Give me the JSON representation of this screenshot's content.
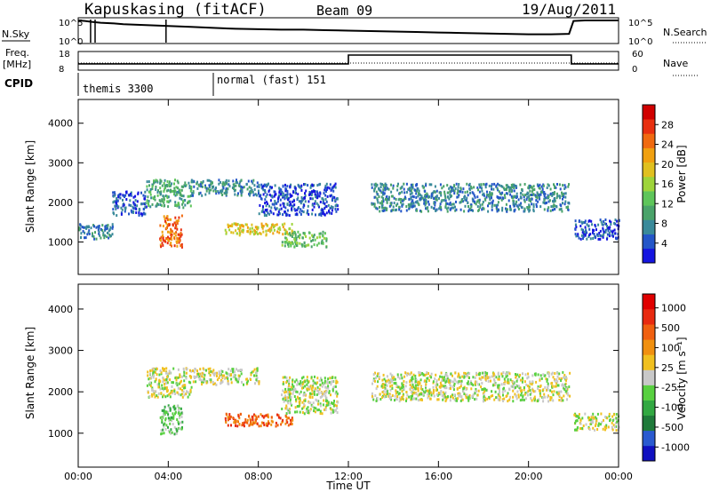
{
  "header": {
    "station": "Kapuskasing (fitACF)",
    "beam": "Beam 09",
    "date": "19/Aug/2011"
  },
  "noise_panel": {
    "left_label": "N.Sky",
    "right_label": "N.Search",
    "left_ticks": [
      "10^5",
      "10^0"
    ],
    "right_ticks": [
      "10^5",
      "10^0"
    ],
    "noise_sky_log": [
      [
        0.0,
        4.8
      ],
      [
        0.3,
        4.7
      ],
      [
        0.6,
        4.5
      ],
      [
        1.0,
        4.3
      ],
      [
        1.5,
        4.2
      ],
      [
        2.0,
        4.0
      ],
      [
        2.5,
        3.9
      ],
      [
        3.0,
        3.8
      ],
      [
        3.5,
        3.7
      ],
      [
        4.0,
        3.6
      ],
      [
        4.5,
        3.5
      ],
      [
        5.0,
        3.4
      ],
      [
        6.0,
        3.2
      ],
      [
        7.0,
        3.0
      ],
      [
        8.0,
        2.9
      ],
      [
        9.0,
        2.8
      ],
      [
        10.0,
        2.8
      ],
      [
        11.0,
        2.7
      ],
      [
        12.0,
        2.6
      ],
      [
        13.0,
        2.5
      ],
      [
        14.0,
        2.4
      ],
      [
        15.0,
        2.3
      ],
      [
        16.0,
        2.2
      ],
      [
        17.0,
        2.1
      ],
      [
        18.0,
        2.0
      ],
      [
        19.0,
        1.9
      ],
      [
        20.0,
        1.8
      ],
      [
        21.0,
        1.8
      ],
      [
        21.8,
        1.9
      ],
      [
        22.0,
        4.7
      ],
      [
        22.5,
        4.8
      ],
      [
        23.0,
        4.8
      ],
      [
        24.0,
        4.8
      ]
    ],
    "dropouts_hours": [
      0.55,
      0.75,
      3.9
    ]
  },
  "freq_panel": {
    "left_label_1": "Freq.",
    "left_label_2": "[MHz]",
    "right_label": "Nave",
    "left_ticks": [
      "18",
      "8"
    ],
    "right_ticks": [
      "60",
      "0"
    ],
    "freq_mhz": [
      [
        0.0,
        11.2
      ],
      [
        12.0,
        11.2
      ],
      [
        12.0,
        16.4
      ],
      [
        21.9,
        16.4
      ],
      [
        21.9,
        11.2
      ],
      [
        24.0,
        11.2
      ]
    ],
    "nave": [
      [
        0.0,
        22
      ],
      [
        12.0,
        22
      ],
      [
        12.0,
        22
      ],
      [
        24.0,
        22
      ]
    ]
  },
  "cpid": {
    "label": "CPID",
    "programs": [
      {
        "name": "themis 3300",
        "start_hour": 0.0
      },
      {
        "name": "normal (fast) 151",
        "start_hour": 6.0
      }
    ]
  },
  "chart_data": [
    {
      "type": "heatmap",
      "title": "",
      "ylabel": "Slant Range [km]",
      "ylim": [
        180,
        4600
      ],
      "yticks": [
        "1000",
        "2000",
        "3000",
        "4000"
      ],
      "xlim": [
        0,
        24
      ],
      "colorbar": {
        "label": "Power [dB]",
        "ticks": [
          "4",
          "8",
          "12",
          "16",
          "20",
          "24",
          "28"
        ],
        "colors": [
          "#1515e0",
          "#2456c8",
          "#3a8a9a",
          "#4aa36a",
          "#5ec55a",
          "#9ed43a",
          "#e0c020",
          "#f0a010",
          "#f06a10",
          "#e83010",
          "#d00000"
        ]
      },
      "echo_regions": [
        {
          "t0": 0.0,
          "t1": 1.5,
          "r0": 1100,
          "r1": 1500,
          "level": 2
        },
        {
          "t0": 1.5,
          "t1": 3.0,
          "r0": 1700,
          "r1": 2300,
          "level": 1
        },
        {
          "t0": 3.0,
          "t1": 5.0,
          "r0": 1900,
          "r1": 2600,
          "level": 3
        },
        {
          "t0": 3.6,
          "t1": 4.6,
          "r0": 900,
          "r1": 1700,
          "level": 8
        },
        {
          "t0": 5.0,
          "t1": 8.0,
          "r0": 2200,
          "r1": 2600,
          "level": 2
        },
        {
          "t0": 6.5,
          "t1": 9.5,
          "r0": 1200,
          "r1": 1500,
          "level": 6
        },
        {
          "t0": 9.0,
          "t1": 11.0,
          "r0": 900,
          "r1": 1300,
          "level": 4
        },
        {
          "t0": 8.0,
          "t1": 11.5,
          "r0": 1700,
          "r1": 2500,
          "level": 1
        },
        {
          "t0": 13.0,
          "t1": 21.8,
          "r0": 1800,
          "r1": 2500,
          "level": 2
        },
        {
          "t0": 22.0,
          "t1": 24.0,
          "r0": 1100,
          "r1": 1600,
          "level": 1
        }
      ]
    },
    {
      "type": "heatmap",
      "title": "",
      "ylabel": "Slant Range [km]",
      "ylim": [
        180,
        4600
      ],
      "yticks": [
        "1000",
        "2000",
        "3000",
        "4000"
      ],
      "xlim": [
        0,
        24
      ],
      "colorbar": {
        "label": "Velocity [m s⁻¹]",
        "ticks": [
          "1000",
          "500",
          "100",
          "25",
          "-25",
          "-100",
          "-500",
          "-1000"
        ],
        "colors": [
          "#1010c0",
          "#2a5ad0",
          "#1f7a3a",
          "#32a842",
          "#58d040",
          "#c8c8c8",
          "#f0c020",
          "#f09010",
          "#f06010",
          "#e82a10",
          "#e00000"
        ]
      },
      "echo_regions": [
        {
          "t0": 3.0,
          "t1": 5.0,
          "r0": 1900,
          "r1": 2600,
          "level": 5
        },
        {
          "t0": 3.6,
          "t1": 4.6,
          "r0": 1000,
          "r1": 1700,
          "level": 4
        },
        {
          "t0": 5.0,
          "t1": 8.0,
          "r0": 2200,
          "r1": 2600,
          "level": 5
        },
        {
          "t0": 6.5,
          "t1": 9.5,
          "r0": 1200,
          "r1": 1500,
          "level": 8
        },
        {
          "t0": 9.0,
          "t1": 11.5,
          "r0": 1500,
          "r1": 2400,
          "level": 5
        },
        {
          "t0": 13.0,
          "t1": 21.8,
          "r0": 1800,
          "r1": 2500,
          "level": 5
        },
        {
          "t0": 22.0,
          "t1": 24.0,
          "r0": 1100,
          "r1": 1500,
          "level": 5
        }
      ]
    }
  ],
  "x_axis": {
    "ticks": [
      "00:00",
      "04:00",
      "08:00",
      "12:00",
      "16:00",
      "20:00",
      "00:00"
    ],
    "label": "Time UT"
  }
}
